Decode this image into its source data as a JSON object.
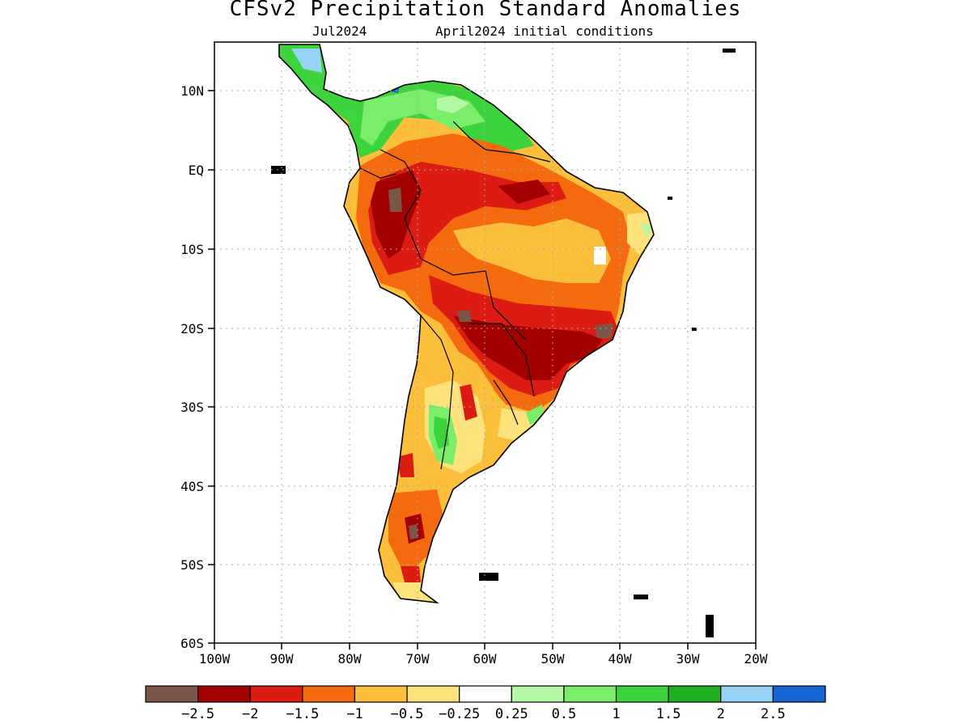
{
  "header": {
    "title": "CFSv2 Precipitation Standard Anomalies",
    "valid_month": "Jul2024",
    "init_conditions": "April2024 initial conditions"
  },
  "map": {
    "lon_range": [
      -100,
      -20
    ],
    "lat_range": [
      -60,
      15
    ],
    "grid": "dotted",
    "lat_ticks": [
      "10N",
      "EQ",
      "10S",
      "20S",
      "30S",
      "40S",
      "50S",
      "60S"
    ],
    "lon_ticks": [
      "100W",
      "90W",
      "80W",
      "70W",
      "60W",
      "50W",
      "40W",
      "30W",
      "20W"
    ]
  },
  "colorbar": {
    "colors": [
      "#7b5548",
      "#a30000",
      "#dc1c13",
      "#f46b0f",
      "#fbbf3c",
      "#fee37c",
      "#ffffff",
      "#b4f7a4",
      "#7aed6a",
      "#3cd33c",
      "#1fb01f",
      "#97d3f7",
      "#1464d3"
    ],
    "labels": [
      "−2.5",
      "−2",
      "−1.5",
      "−1",
      "−0.5",
      "−0.25",
      "0.25",
      "0.5",
      "1",
      "1.5",
      "2",
      "2.5"
    ]
  },
  "anomaly_regions": [
    {
      "name": "northwest-amazon",
      "level": "-2 to -2.5"
    },
    {
      "name": "central-brazil",
      "level": "-0.5 to -1"
    },
    {
      "name": "southern-brazil-paraguay",
      "level": "-2"
    },
    {
      "name": "northern-colombia-venezuela",
      "level": "+0.5 to +1.5"
    },
    {
      "name": "central-argentina",
      "level": "+0.5 to +1.5"
    }
  ]
}
